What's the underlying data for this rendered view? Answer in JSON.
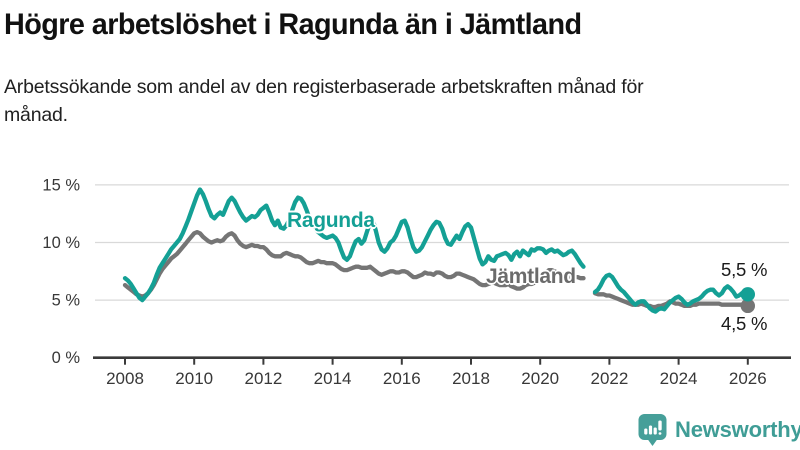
{
  "header": {
    "title": "Högre arbetslöshet i Ragunda än i Jämtland",
    "subtitle": "Arbetssökande som andel av den registerbaserade arbetskraften månad för månad."
  },
  "footer": {
    "brand": "Newsworthy",
    "brand_color": "#3f9d96",
    "icon_color": "#469f99"
  },
  "chart_data": {
    "type": "line",
    "unit": "%",
    "x_start_year": 2008,
    "x_step_months": 1,
    "x_end": "2026-01",
    "ylim": [
      0,
      16.8
    ],
    "grid": "horizontal",
    "legend_position": "inline-labels",
    "y_ticks": [
      {
        "value": 0,
        "label": "0 %"
      },
      {
        "value": 5,
        "label": "5 %"
      },
      {
        "value": 10,
        "label": "10 %"
      },
      {
        "value": 15,
        "label": "15 %"
      }
    ],
    "x_ticks": [
      "2008",
      "2010",
      "2012",
      "2014",
      "2016",
      "2018",
      "2020",
      "2022",
      "2024",
      "2026"
    ],
    "series": [
      {
        "name": "Ragunda",
        "color": "#14a095",
        "end_value_label": "5,5 %",
        "values": [
          6.9,
          6.7,
          6.4,
          6.0,
          5.6,
          5.2,
          5.0,
          5.3,
          5.6,
          6.0,
          6.5,
          7.2,
          7.8,
          8.2,
          8.6,
          9.0,
          9.4,
          9.7,
          10.0,
          10.3,
          10.8,
          11.4,
          12.0,
          12.7,
          13.4,
          14.1,
          14.6,
          14.2,
          13.6,
          12.9,
          12.3,
          12.1,
          12.4,
          12.6,
          12.4,
          13.0,
          13.6,
          13.9,
          13.6,
          13.1,
          12.6,
          12.2,
          11.9,
          12.1,
          12.3,
          12.2,
          12.4,
          12.8,
          13.0,
          13.2,
          12.6,
          11.9,
          11.5,
          11.9,
          11.3,
          11.2,
          11.5,
          12.0,
          12.8,
          13.5,
          13.9,
          13.8,
          13.4,
          12.8,
          12.1,
          11.6,
          11.2,
          10.9,
          10.7,
          10.5,
          10.4,
          10.5,
          10.6,
          10.4,
          10.0,
          9.3,
          8.7,
          8.5,
          8.8,
          9.5,
          10.1,
          10.3,
          9.9,
          10.2,
          11.0,
          11.7,
          11.9,
          11.0,
          10.0,
          9.4,
          9.2,
          9.5,
          10.0,
          10.2,
          10.6,
          11.2,
          11.8,
          11.9,
          11.3,
          10.4,
          9.6,
          9.2,
          9.3,
          9.6,
          10.1,
          10.6,
          11.1,
          11.5,
          11.8,
          11.7,
          11.2,
          10.4,
          9.9,
          9.8,
          10.2,
          10.6,
          10.3,
          10.9,
          11.4,
          11.6,
          11.3,
          10.4,
          9.5,
          8.6,
          8.1,
          8.3,
          8.8,
          8.5,
          8.4,
          8.8,
          8.9,
          9.0,
          9.1,
          8.9,
          8.5,
          9.0,
          9.2,
          8.8,
          9.3,
          9.1,
          8.9,
          9.4,
          9.3,
          9.5,
          9.5,
          9.4,
          9.1,
          9.3,
          9.4,
          9.2,
          9.3,
          9.1,
          8.9,
          9.0,
          9.2,
          9.3,
          9.0,
          8.6,
          8.2,
          7.9,
          null,
          null,
          null,
          5.7,
          5.9,
          6.3,
          6.8,
          7.1,
          7.2,
          7.0,
          6.6,
          6.2,
          5.9,
          5.7,
          5.4,
          5.1,
          4.8,
          4.6,
          4.8,
          4.9,
          4.9,
          4.6,
          4.3,
          4.1,
          4.0,
          4.2,
          4.3,
          4.2,
          4.5,
          4.8,
          5.0,
          5.2,
          5.3,
          5.1,
          4.8,
          4.6,
          4.7,
          4.9,
          5.0,
          5.1,
          5.3,
          5.6,
          5.8,
          5.9,
          5.9,
          5.6,
          5.4,
          5.6,
          6.0,
          6.2,
          6.0,
          5.7,
          5.3,
          5.4,
          5.6,
          5.4,
          5.5
        ]
      },
      {
        "name": "Jämtland",
        "color": "#757575",
        "end_value_label": "4,5 %",
        "values": [
          6.3,
          6.1,
          5.9,
          5.7,
          5.5,
          5.4,
          5.3,
          5.4,
          5.6,
          5.9,
          6.3,
          6.8,
          7.3,
          7.7,
          8.0,
          8.3,
          8.6,
          8.8,
          9.0,
          9.3,
          9.6,
          9.9,
          10.2,
          10.5,
          10.8,
          10.9,
          10.8,
          10.5,
          10.3,
          10.1,
          10.0,
          10.1,
          10.2,
          10.1,
          10.2,
          10.5,
          10.7,
          10.8,
          10.6,
          10.2,
          9.9,
          9.7,
          9.6,
          9.7,
          9.8,
          9.7,
          9.7,
          9.6,
          9.6,
          9.4,
          9.1,
          8.9,
          8.8,
          8.8,
          8.8,
          9.0,
          9.1,
          9.0,
          8.9,
          8.8,
          8.8,
          8.7,
          8.5,
          8.3,
          8.2,
          8.2,
          8.3,
          8.4,
          8.3,
          8.3,
          8.2,
          8.2,
          8.2,
          8.1,
          7.9,
          7.7,
          7.6,
          7.6,
          7.7,
          7.8,
          7.9,
          7.9,
          7.8,
          7.8,
          7.8,
          7.9,
          7.7,
          7.5,
          7.3,
          7.2,
          7.3,
          7.4,
          7.5,
          7.5,
          7.4,
          7.4,
          7.5,
          7.5,
          7.4,
          7.2,
          7.0,
          7.0,
          7.1,
          7.2,
          7.4,
          7.3,
          7.3,
          7.2,
          7.4,
          7.4,
          7.3,
          7.1,
          7.0,
          7.0,
          7.1,
          7.3,
          7.3,
          7.2,
          7.1,
          7.0,
          6.9,
          6.8,
          6.6,
          6.4,
          6.3,
          6.3,
          6.4,
          6.5,
          6.5,
          6.4,
          6.3,
          6.3,
          6.3,
          6.4,
          6.2,
          6.1,
          6.0,
          6.0,
          6.1,
          6.3,
          6.4,
          6.4,
          6.5,
          6.6,
          6.8,
          7.1,
          7.4,
          7.6,
          7.6,
          7.5,
          7.4,
          7.3,
          7.2,
          7.1,
          7.0,
          7.0,
          7.0,
          7.0,
          6.9,
          6.9,
          null,
          null,
          null,
          5.6,
          5.5,
          5.5,
          5.5,
          5.4,
          5.4,
          5.3,
          5.2,
          5.1,
          5.0,
          4.9,
          4.8,
          4.7,
          4.6,
          4.6,
          4.6,
          4.7,
          4.6,
          4.5,
          4.5,
          4.4,
          4.4,
          4.5,
          4.5,
          4.6,
          4.7,
          4.9,
          4.8,
          4.7,
          4.7,
          4.6,
          4.5,
          4.5,
          4.5,
          4.6,
          4.6,
          4.7,
          4.7,
          4.7,
          4.7,
          4.7,
          4.7,
          4.7,
          4.7,
          4.6,
          4.6,
          4.6,
          4.6,
          4.6,
          4.6,
          4.6,
          4.6,
          4.5,
          4.5
        ]
      }
    ]
  }
}
